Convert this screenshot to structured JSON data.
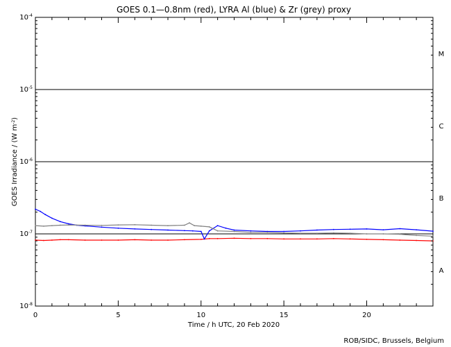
{
  "chart_data": {
    "type": "line",
    "title": "GOES 0.1—0.8nm (red), LYRA Al (blue) & Zr (grey) proxy",
    "xlabel": "Time / h UTC, 20 Feb 2020",
    "ylabel_main": "GOES Irradiance / (W m",
    "ylabel_exp": "-2",
    "ylabel_close": ")",
    "credit": "ROB/SIDC, Brussels, Belgium",
    "xlim": [
      0,
      24
    ],
    "ylim": [
      1e-08,
      0.0001
    ],
    "yscale": "log",
    "x_ticks": [
      {
        "value": 0,
        "label": "0"
      },
      {
        "value": 5,
        "label": "5"
      },
      {
        "value": 10,
        "label": "10"
      },
      {
        "value": 15,
        "label": "15"
      },
      {
        "value": 20,
        "label": "20"
      }
    ],
    "y_ticks": [
      {
        "value": 1e-08,
        "base": "10",
        "exp": "-8"
      },
      {
        "value": 1e-07,
        "base": "10",
        "exp": "-7"
      },
      {
        "value": 1e-06,
        "base": "10",
        "exp": "-6"
      },
      {
        "value": 1e-05,
        "base": "10",
        "exp": "-5"
      },
      {
        "value": 0.0001,
        "base": "10",
        "exp": "-4"
      }
    ],
    "flare_class_lines": [
      1e-07,
      1e-06,
      1e-05
    ],
    "flare_classes": [
      {
        "label": "A",
        "value": 3.16e-08
      },
      {
        "label": "B",
        "value": 3.16e-07
      },
      {
        "label": "C",
        "value": 3.16e-06
      },
      {
        "label": "M",
        "value": 3.16e-05
      }
    ],
    "series": [
      {
        "name": "GOES 0.1-0.8nm",
        "color": "#ff0000",
        "x": [
          0,
          0.5,
          1,
          1.5,
          2,
          3,
          4,
          5,
          6,
          7,
          8,
          9,
          10,
          10.5,
          11,
          12,
          13,
          14,
          15,
          16,
          17,
          18,
          19,
          20,
          21,
          22,
          23,
          24
        ],
        "y": [
          8.2e-08,
          8.1e-08,
          8.2e-08,
          8.3e-08,
          8.3e-08,
          8.2e-08,
          8.2e-08,
          8.2e-08,
          8.3e-08,
          8.2e-08,
          8.2e-08,
          8.3e-08,
          8.4e-08,
          8.6e-08,
          8.6e-08,
          8.7e-08,
          8.6e-08,
          8.6e-08,
          8.5e-08,
          8.5e-08,
          8.5e-08,
          8.6e-08,
          8.5e-08,
          8.4e-08,
          8.3e-08,
          8.2e-08,
          8.1e-08,
          8e-08
        ]
      },
      {
        "name": "LYRA Al proxy",
        "color": "#0000ff",
        "x": [
          0,
          0.3,
          0.6,
          1,
          1.5,
          2,
          2.5,
          3,
          4,
          5,
          6,
          7,
          8,
          9,
          9.5,
          10,
          10.2,
          10.5,
          11,
          11.5,
          12,
          13,
          14,
          15,
          16,
          17,
          18,
          19,
          20,
          21,
          22,
          23,
          24
        ],
        "y": [
          2.2e-07,
          2.05e-07,
          1.85e-07,
          1.65e-07,
          1.48e-07,
          1.38e-07,
          1.32e-07,
          1.29e-07,
          1.24e-07,
          1.2e-07,
          1.17e-07,
          1.15e-07,
          1.13e-07,
          1.11e-07,
          1.1e-07,
          1.08e-07,
          8.5e-08,
          1.1e-07,
          1.3e-07,
          1.2e-07,
          1.13e-07,
          1.1e-07,
          1.08e-07,
          1.08e-07,
          1.1e-07,
          1.13e-07,
          1.15e-07,
          1.16e-07,
          1.17e-07,
          1.14e-07,
          1.18e-07,
          1.14e-07,
          1.09e-07
        ]
      },
      {
        "name": "LYRA Zr proxy",
        "color": "#808080",
        "x": [
          0,
          0.5,
          1,
          1.5,
          2,
          3,
          4,
          5,
          6,
          7,
          8,
          9,
          9.3,
          9.6,
          10,
          10.5,
          11,
          12,
          13,
          14,
          15,
          16,
          17,
          18,
          19,
          20,
          21,
          22,
          23,
          24
        ],
        "y": [
          1.3e-07,
          1.28e-07,
          1.3e-07,
          1.32e-07,
          1.33e-07,
          1.32e-07,
          1.31e-07,
          1.33e-07,
          1.34e-07,
          1.32e-07,
          1.3e-07,
          1.32e-07,
          1.42e-07,
          1.3e-07,
          1.28e-07,
          1.25e-07,
          1.1e-07,
          1.08e-07,
          1.05e-07,
          1.05e-07,
          1.03e-07,
          1.02e-07,
          1.02e-07,
          1.03e-07,
          1.02e-07,
          1e-07,
          1e-07,
          9.9e-08,
          9.5e-08,
          9.3e-08
        ]
      }
    ]
  }
}
